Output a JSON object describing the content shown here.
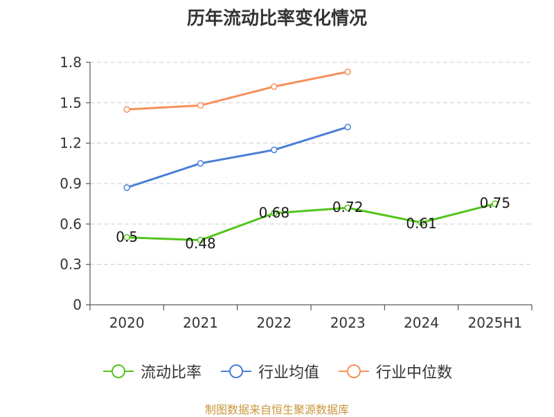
{
  "chart_data": {
    "type": "line",
    "title": "历年流动比率变化情况",
    "categories": [
      "2020",
      "2021",
      "2022",
      "2023",
      "2024",
      "2025H1"
    ],
    "ylim": [
      0,
      1.8
    ],
    "yticks": [
      "0",
      "0.3",
      "0.6",
      "0.9",
      "1.2",
      "1.5",
      "1.8"
    ],
    "grid": true,
    "legend_position": "bottom",
    "series": [
      {
        "name": "流动比率",
        "color": "#52c41a",
        "values": [
          0.5,
          0.48,
          0.68,
          0.72,
          0.61,
          0.75
        ],
        "labels": [
          "0.5",
          "0.48",
          "0.68",
          "0.72",
          "0.61",
          "0.75"
        ]
      },
      {
        "name": "行业均值",
        "color": "#4a7fd6",
        "values": [
          0.87,
          1.05,
          1.15,
          1.32,
          null,
          null
        ]
      },
      {
        "name": "行业中位数",
        "color": "#f5905a",
        "values": [
          1.45,
          1.48,
          1.62,
          1.73,
          null,
          null
        ]
      }
    ]
  },
  "source": "制图数据来自恒生聚源数据库"
}
